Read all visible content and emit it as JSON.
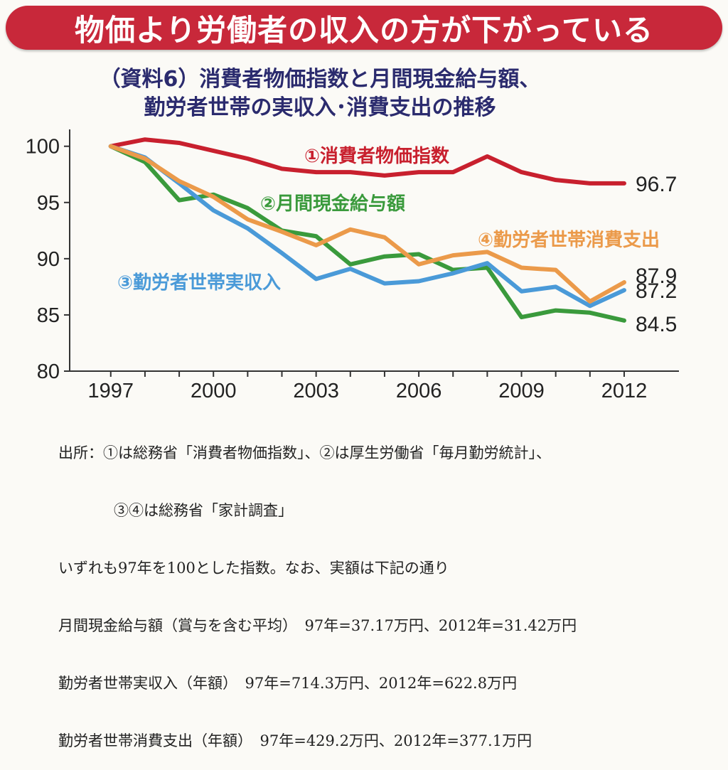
{
  "banner": {
    "text": "物価より労働者の収入の方が下がっている"
  },
  "chart_data": {
    "type": "line",
    "title_line1": "（資料6）消費者物価指数と月間現金給与額、",
    "title_line2": "勤労者世帯の実収入･消費支出の推移",
    "x": [
      1997,
      1998,
      1999,
      2000,
      2001,
      2002,
      2003,
      2004,
      2005,
      2006,
      2007,
      2008,
      2009,
      2010,
      2011,
      2012
    ],
    "xticks": [
      "1997",
      "2000",
      "2003",
      "2006",
      "2009",
      "2012"
    ],
    "yticks": [
      "100",
      "95",
      "90",
      "85",
      "80"
    ],
    "ylim": [
      80,
      101.5
    ],
    "xlim": [
      1995.8,
      2013.6
    ],
    "grid": false,
    "series": [
      {
        "name": "①消費者物価指数",
        "color": "#c8202e",
        "values": [
          100,
          100.6,
          100.3,
          99.6,
          98.9,
          98.0,
          97.7,
          97.7,
          97.4,
          97.7,
          97.7,
          99.1,
          97.7,
          97.0,
          96.7,
          96.7
        ],
        "end_label": "96.7"
      },
      {
        "name": "②月間現金給与額",
        "color": "#3a9a3c",
        "values": [
          100,
          98.6,
          95.2,
          95.7,
          94.5,
          92.5,
          92.0,
          89.5,
          90.2,
          90.4,
          89.0,
          89.2,
          84.8,
          85.4,
          85.2,
          84.5
        ],
        "end_label": "84.5"
      },
      {
        "name": "③勤労者世帯実収入",
        "color": "#4a9ad8",
        "values": [
          100,
          99.0,
          96.7,
          94.3,
          92.7,
          90.5,
          88.2,
          89.1,
          87.8,
          88.0,
          88.7,
          89.6,
          87.1,
          87.5,
          85.8,
          87.2
        ],
        "end_label": "87.2"
      },
      {
        "name": "④勤労者世帯消費支出",
        "color": "#eb9a4a",
        "values": [
          100,
          98.9,
          96.9,
          95.5,
          93.5,
          92.4,
          91.2,
          92.6,
          91.9,
          89.5,
          90.3,
          90.6,
          89.2,
          89.0,
          86.2,
          87.9
        ],
        "end_label": "87.9"
      }
    ]
  },
  "notes": {
    "line1": "出所：①は総務省「消費者物価指数」、②は厚生労働省「毎月勤労統計」、",
    "line2": "③④は総務省「家計調査」",
    "line3": "いずれも97年を100とした指数。なお、実額は下記の通り",
    "line4": "月間現金給与額（賞与を含む平均）　97年=37.17万円、2012年=31.42万円",
    "line5": "勤労者世帯実収入（年額）　97年=714.3万円、2012年=622.8万円",
    "line6": "勤労者世帯消費支出（年額）　97年=429.2万円、2012年=377.1万円"
  }
}
